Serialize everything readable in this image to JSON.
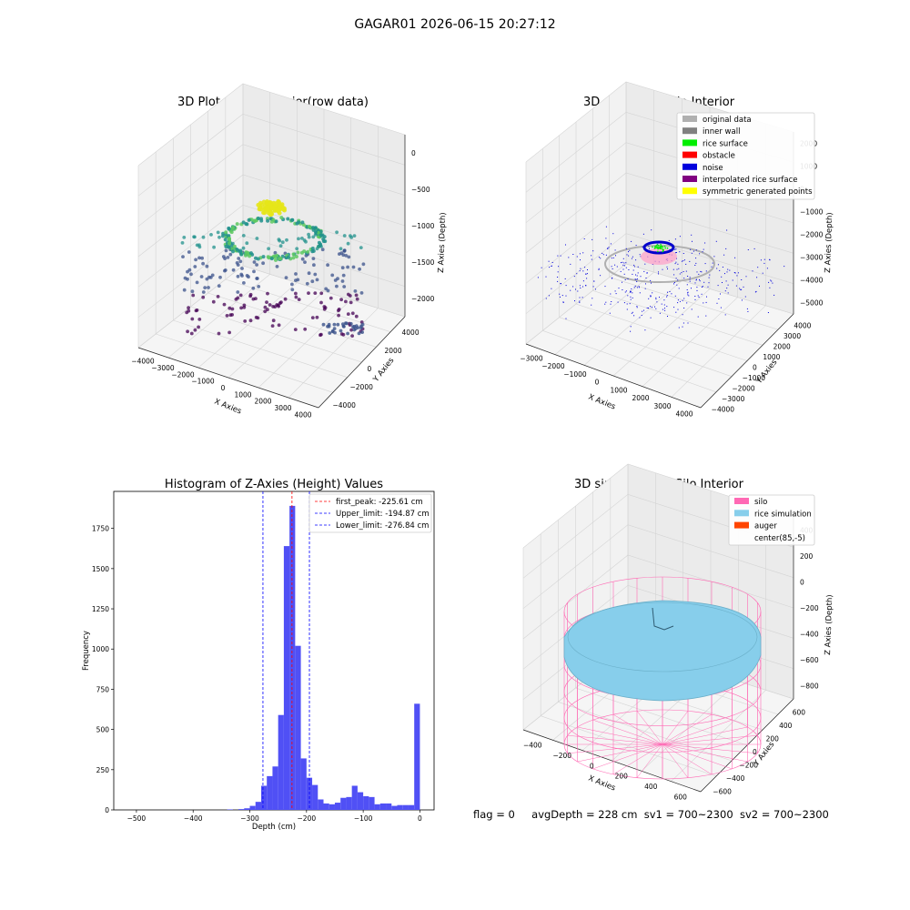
{
  "suptitle": "GAGAR01 2026-06-15 20:27:12",
  "status": {
    "flag": "flag = 0",
    "avg": "avgDepth = 228 cm",
    "sv1": "sv1 = 700~2300",
    "sv2": "sv2 = 700~2300"
  },
  "chart_data": [
    {
      "type": "scatter",
      "title": "3D Plot of Silo Interior(row data)",
      "xlabel": "X Axies",
      "ylabel": "Y Axies",
      "zlabel": "Z Axies (Depth)",
      "xticks": [
        "−4000",
        "−3000",
        "−2000",
        "−1000",
        "0",
        "1000",
        "2000",
        "3000",
        "4000"
      ],
      "yticks": [
        "−4000",
        "−2000",
        "0",
        "2000",
        "4000"
      ],
      "zticks": [
        "0",
        "−500",
        "−1000",
        "−1500",
        "−2000"
      ],
      "colormap": "viridis",
      "grid": true
    },
    {
      "type": "scatter",
      "title": "3D classify of Silo Interior",
      "xlabel": "X Axies",
      "ylabel": "Y Axies",
      "zlabel": "Z Axies (Depth)",
      "xticks": [
        "−3000",
        "−2000",
        "−1000",
        "0",
        "1000",
        "2000",
        "3000",
        "4000"
      ],
      "yticks": [
        "−4000",
        "−3000",
        "−2000",
        "−1000",
        "0",
        "1000",
        "2000",
        "3000",
        "4000"
      ],
      "zticks": [
        "2000",
        "1000",
        "0",
        "−1000",
        "−2000",
        "−3000",
        "−4000",
        "−5000"
      ],
      "legend_position": "top-right",
      "legend": [
        {
          "label": "original data",
          "color": "#b0b0b0"
        },
        {
          "label": "inner wall",
          "color": "#808080"
        },
        {
          "label": "rice surface",
          "color": "#00ee00"
        },
        {
          "label": "obstacle",
          "color": "#ff0000"
        },
        {
          "label": "noise",
          "color": "#0000dd"
        },
        {
          "label": "interpolated rice surface",
          "color": "#800080"
        },
        {
          "label": "symmetric generated points",
          "color": "#ffff00"
        }
      ],
      "grid": true
    },
    {
      "type": "bar",
      "title": "Histogram of Z-Axies (Height) Values",
      "xlabel": "Depth (cm)",
      "ylabel": "Frequency",
      "xlim": [
        -540,
        25
      ],
      "ylim": [
        0,
        1980
      ],
      "xticks": [
        -500,
        -400,
        -300,
        -200,
        -100,
        0
      ],
      "yticks": [
        0,
        250,
        500,
        750,
        1000,
        1250,
        1500,
        1750
      ],
      "bar_color": "#5050f5",
      "bins": [
        {
          "x0": -340,
          "x1": -330,
          "v": 3
        },
        {
          "x0": -330,
          "x1": -320,
          "v": 0
        },
        {
          "x0": -320,
          "x1": -310,
          "v": 5
        },
        {
          "x0": -310,
          "x1": -300,
          "v": 10
        },
        {
          "x0": -300,
          "x1": -290,
          "v": 25
        },
        {
          "x0": -290,
          "x1": -280,
          "v": 50
        },
        {
          "x0": -280,
          "x1": -270,
          "v": 150
        },
        {
          "x0": -270,
          "x1": -260,
          "v": 210
        },
        {
          "x0": -260,
          "x1": -250,
          "v": 270
        },
        {
          "x0": -250,
          "x1": -240,
          "v": 590
        },
        {
          "x0": -240,
          "x1": -230,
          "v": 1640
        },
        {
          "x0": -230,
          "x1": -220,
          "v": 1890
        },
        {
          "x0": -220,
          "x1": -210,
          "v": 1020
        },
        {
          "x0": -210,
          "x1": -200,
          "v": 320
        },
        {
          "x0": -200,
          "x1": -190,
          "v": 200
        },
        {
          "x0": -190,
          "x1": -180,
          "v": 155
        },
        {
          "x0": -180,
          "x1": -170,
          "v": 65
        },
        {
          "x0": -170,
          "x1": -160,
          "v": 40
        },
        {
          "x0": -160,
          "x1": -150,
          "v": 35
        },
        {
          "x0": -150,
          "x1": -140,
          "v": 45
        },
        {
          "x0": -140,
          "x1": -130,
          "v": 75
        },
        {
          "x0": -130,
          "x1": -120,
          "v": 80
        },
        {
          "x0": -120,
          "x1": -110,
          "v": 150
        },
        {
          "x0": -110,
          "x1": -100,
          "v": 110
        },
        {
          "x0": -100,
          "x1": -90,
          "v": 85
        },
        {
          "x0": -90,
          "x1": -80,
          "v": 80
        },
        {
          "x0": -80,
          "x1": -70,
          "v": 35
        },
        {
          "x0": -70,
          "x1": -60,
          "v": 40
        },
        {
          "x0": -60,
          "x1": -50,
          "v": 40
        },
        {
          "x0": -50,
          "x1": -40,
          "v": 25
        },
        {
          "x0": -40,
          "x1": -30,
          "v": 30
        },
        {
          "x0": -30,
          "x1": -20,
          "v": 30
        },
        {
          "x0": -20,
          "x1": -10,
          "v": 30
        },
        {
          "x0": -10,
          "x1": 0,
          "v": 660
        }
      ],
      "vlines": [
        {
          "x": -225.61,
          "color": "#ff0000",
          "label": "first_peak: -225.61 cm"
        },
        {
          "x": -194.87,
          "color": "#0000ff",
          "label": "Upper_limit: -194.87 cm"
        },
        {
          "x": -276.84,
          "color": "#0000ff",
          "label": "Lower_limit: -276.84 cm"
        }
      ],
      "legend_position": "top-right"
    },
    {
      "type": "scatter",
      "title": "3D simulation of Silo Interior",
      "xlabel": "X Axies",
      "ylabel": "Y Axies",
      "zlabel": "Z Axies (Depth)",
      "xticks": [
        "−400",
        "−200",
        "0",
        "200",
        "400",
        "600"
      ],
      "yticks": [
        "−600",
        "−400",
        "−200",
        "0",
        "200",
        "400",
        "600"
      ],
      "zticks": [
        "400",
        "200",
        "0",
        "−200",
        "−400",
        "−600",
        "−800"
      ],
      "legend_position": "top-right",
      "legend": [
        {
          "label": "silo",
          "color": "#ff69b4"
        },
        {
          "label": "rice simulation",
          "color": "#87ceeb"
        },
        {
          "label": "auger",
          "color": "#ff4500"
        },
        {
          "label": "center(85,-5)",
          "color": ""
        }
      ],
      "grid": true
    }
  ]
}
